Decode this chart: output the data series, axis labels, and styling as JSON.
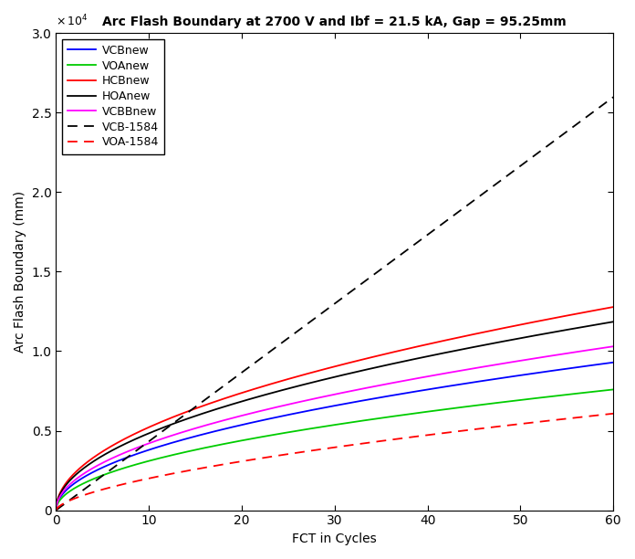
{
  "title": "Arc Flash Boundary at 2700 V and Ibf = 21.5 kA, Gap = 95.25mm",
  "xlabel": "FCT in Cycles",
  "ylabel": "Arc Flash Boundary (mm)",
  "xlim": [
    0,
    60
  ],
  "ylim": [
    0,
    30000
  ],
  "background_color": "#ffffff",
  "series": [
    {
      "label": "VCBnew",
      "color": "#0000ff",
      "linestyle": "solid",
      "a": 1200,
      "b": 0.5,
      "c": 0
    },
    {
      "label": "VOAnew",
      "color": "#00cc00",
      "linestyle": "solid",
      "a": 980,
      "b": 0.5,
      "c": 0
    },
    {
      "label": "HCBnew",
      "color": "#ff0000",
      "linestyle": "solid",
      "a": 1650,
      "b": 0.5,
      "c": 0
    },
    {
      "label": "HOAnew",
      "color": "#000000",
      "linestyle": "solid",
      "a": 1530,
      "b": 0.5,
      "c": 0
    },
    {
      "label": "VCBBnew",
      "color": "#ff00ff",
      "linestyle": "solid",
      "a": 1330,
      "b": 0.5,
      "c": 0
    },
    {
      "label": "VCB-1584",
      "color": "#000000",
      "linestyle": "dashed",
      "a": 433,
      "b": 1.0,
      "c": 0
    },
    {
      "label": "VOA-1584",
      "color": "#ff0000",
      "linestyle": "dashed",
      "a": 480,
      "b": 0.62,
      "c": 0
    }
  ],
  "n_points": 500,
  "x_start": 0.01,
  "x_end": 60.0
}
